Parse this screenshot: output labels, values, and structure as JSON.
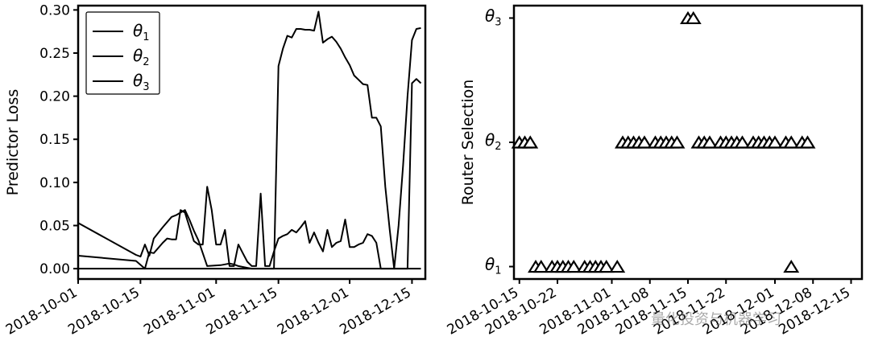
{
  "watermark": "量化投资与机器学习",
  "chart_data": [
    {
      "type": "line",
      "ylabel": "Predictor Loss",
      "ylim": [
        -0.012,
        0.305
      ],
      "yticks": [
        0.0,
        0.05,
        0.1,
        0.15,
        0.2,
        0.25,
        0.3
      ],
      "ytick_labels": [
        "0.00",
        "0.05",
        "0.10",
        "0.15",
        "0.20",
        "0.25",
        "0.30"
      ],
      "xlim": [
        0,
        78
      ],
      "xticks": [
        0,
        14,
        31,
        45,
        61,
        75
      ],
      "xtick_labels": [
        "2018-10-01",
        "2018-10-15",
        "2018-11-01",
        "2018-11-15",
        "2018-12-01",
        "2018-12-15"
      ],
      "legend": [
        "θ1",
        "θ2",
        "θ3"
      ],
      "legend_position": "top-left",
      "series": [
        {
          "name": "θ1",
          "x": [
            0,
            13,
            14,
            15,
            16,
            17,
            19,
            21,
            22,
            23,
            24,
            25,
            26,
            27,
            29,
            32,
            33,
            34,
            35,
            36,
            37,
            38,
            39,
            40,
            41,
            42,
            43,
            45,
            46,
            47,
            48,
            50,
            51,
            52,
            54,
            56,
            57,
            58,
            59,
            61,
            62,
            63,
            64,
            65,
            66,
            67,
            68,
            69,
            70,
            71,
            72,
            73,
            74,
            75,
            76,
            77
          ],
          "y": [
            0.053,
            0.016,
            0.014,
            0.028,
            0.015,
            0.035,
            0.048,
            0.06,
            0.062,
            0.065,
            0.068,
            0.057,
            0.044,
            0.033,
            0.003,
            0.004,
            0.005,
            0.006,
            0.005,
            0.003,
            0.002,
            0.001,
            0.0,
            0.0,
            0.0,
            0.0,
            0.0,
            0.0,
            0.0,
            0.0,
            0.0,
            0.0,
            0.0,
            0.0,
            0.0,
            0.0,
            0.0,
            0.0,
            0.0,
            0.0,
            0.0,
            0.0,
            0.0,
            0.0,
            0.0,
            0.0,
            0.0,
            0.0,
            0.0,
            0.0,
            0.0,
            0.0,
            0.0,
            0.215,
            0.22,
            0.215
          ]
        },
        {
          "name": "θ2",
          "x": [
            0,
            13,
            15,
            16,
            17,
            19,
            20,
            21,
            22,
            23,
            24,
            26,
            27,
            28,
            29,
            30,
            31,
            32,
            33,
            34,
            35,
            36,
            37,
            38,
            39,
            40,
            41,
            42,
            43,
            44,
            45,
            46,
            47,
            48,
            49,
            50,
            51,
            52,
            53,
            54,
            55,
            56,
            57,
            58,
            59,
            60,
            61,
            62,
            63,
            64,
            65,
            66,
            67,
            68,
            69,
            70,
            71,
            72,
            73,
            74,
            75,
            76,
            77
          ],
          "y": [
            0.015,
            0.009,
            0.0,
            0.019,
            0.018,
            0.03,
            0.035,
            0.034,
            0.034,
            0.068,
            0.065,
            0.032,
            0.028,
            0.028,
            0.095,
            0.068,
            0.028,
            0.028,
            0.045,
            0.003,
            0.003,
            0.028,
            0.018,
            0.008,
            0.003,
            0.003,
            0.087,
            0.003,
            0.003,
            0.02,
            0.035,
            0.038,
            0.04,
            0.045,
            0.042,
            0.048,
            0.055,
            0.03,
            0.042,
            0.03,
            0.02,
            0.045,
            0.025,
            0.03,
            0.032,
            0.057,
            0.025,
            0.025,
            0.028,
            0.03,
            0.04,
            0.038,
            0.03,
            0.0,
            0.0,
            0.0,
            0.0,
            0.0,
            0.0,
            0.0,
            0.0,
            0.0,
            0.0
          ]
        },
        {
          "name": "θ3",
          "x": [
            0,
            13,
            29,
            34,
            37,
            39,
            41,
            42,
            44,
            45,
            46,
            47,
            48,
            49,
            50,
            51,
            52,
            53,
            54,
            55,
            56,
            57,
            58,
            59,
            60,
            61,
            62,
            63,
            64,
            65,
            66,
            67,
            68,
            69,
            70,
            71,
            72,
            73,
            74,
            75,
            76,
            77
          ],
          "y": [
            0.0,
            0.0,
            0.0,
            0.0,
            0.0,
            0.0,
            0.0,
            0.0,
            0.0,
            0.235,
            0.255,
            0.27,
            0.268,
            0.278,
            0.278,
            0.277,
            0.277,
            0.276,
            0.298,
            0.262,
            0.266,
            0.269,
            0.263,
            0.255,
            0.245,
            0.236,
            0.224,
            0.219,
            0.214,
            0.213,
            0.175,
            0.175,
            0.165,
            0.095,
            0.045,
            0.0,
            0.05,
            0.12,
            0.2,
            0.265,
            0.278,
            0.279
          ]
        }
      ]
    },
    {
      "type": "scatter",
      "ylabel": "Router Selection",
      "ytick_labels": [
        "θ1",
        "θ2",
        "θ3"
      ],
      "ylim": [
        0.9,
        3.1
      ],
      "xlim": [
        -1,
        63
      ],
      "xtick_labels": [
        "2018-10-15",
        "2018-10-22",
        "2018-11-01",
        "2018-11-08",
        "2018-11-15",
        "2018-11-22",
        "2018-12-01",
        "2018-12-08",
        "2018-12-15"
      ],
      "xticks": [
        0,
        7,
        17,
        24,
        31,
        38,
        47,
        54,
        61
      ],
      "marker": "triangle",
      "points": [
        {
          "x": 0,
          "y": 2
        },
        {
          "x": 1,
          "y": 2
        },
        {
          "x": 2,
          "y": 2
        },
        {
          "x": 3,
          "y": 1
        },
        {
          "x": 4,
          "y": 1
        },
        {
          "x": 6,
          "y": 1
        },
        {
          "x": 7,
          "y": 1
        },
        {
          "x": 8,
          "y": 1
        },
        {
          "x": 9,
          "y": 1
        },
        {
          "x": 10,
          "y": 1
        },
        {
          "x": 12,
          "y": 1
        },
        {
          "x": 13,
          "y": 1
        },
        {
          "x": 14,
          "y": 1
        },
        {
          "x": 15,
          "y": 1
        },
        {
          "x": 16,
          "y": 1
        },
        {
          "x": 18,
          "y": 1
        },
        {
          "x": 19,
          "y": 2
        },
        {
          "x": 20,
          "y": 2
        },
        {
          "x": 21,
          "y": 2
        },
        {
          "x": 22,
          "y": 2
        },
        {
          "x": 23,
          "y": 2
        },
        {
          "x": 25,
          "y": 2
        },
        {
          "x": 26,
          "y": 2
        },
        {
          "x": 27,
          "y": 2
        },
        {
          "x": 28,
          "y": 2
        },
        {
          "x": 29,
          "y": 2
        },
        {
          "x": 31,
          "y": 3
        },
        {
          "x": 32,
          "y": 3
        },
        {
          "x": 33,
          "y": 2
        },
        {
          "x": 34,
          "y": 2
        },
        {
          "x": 35,
          "y": 2
        },
        {
          "x": 37,
          "y": 2
        },
        {
          "x": 38,
          "y": 2
        },
        {
          "x": 39,
          "y": 2
        },
        {
          "x": 40,
          "y": 2
        },
        {
          "x": 41,
          "y": 2
        },
        {
          "x": 43,
          "y": 2
        },
        {
          "x": 44,
          "y": 2
        },
        {
          "x": 45,
          "y": 2
        },
        {
          "x": 46,
          "y": 2
        },
        {
          "x": 47,
          "y": 2
        },
        {
          "x": 49,
          "y": 2
        },
        {
          "x": 50,
          "y": 2
        },
        {
          "x": 50,
          "y": 1
        },
        {
          "x": 52,
          "y": 2
        },
        {
          "x": 53,
          "y": 2
        }
      ]
    }
  ]
}
